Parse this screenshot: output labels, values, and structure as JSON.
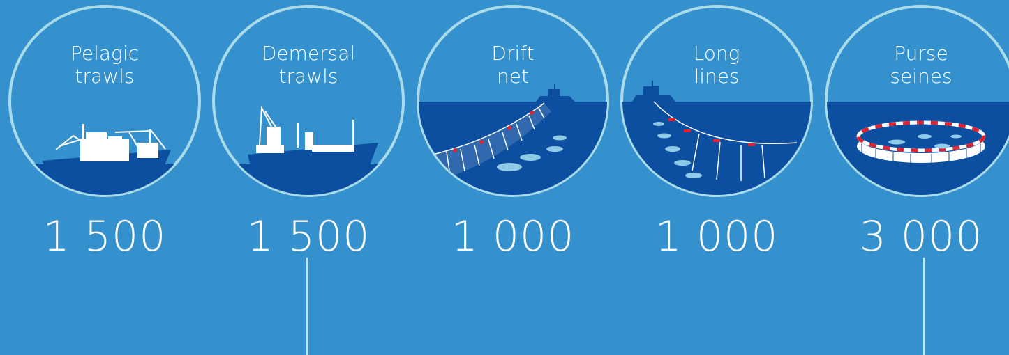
{
  "items": [
    {
      "line1": "Pelagic",
      "line2": "trawls",
      "value": "1 500"
    },
    {
      "line1": "Demersal",
      "line2": "trawls",
      "value": "1 500"
    },
    {
      "line1": "Drift",
      "line2": "net",
      "value": "1 000"
    },
    {
      "line1": "Long",
      "line2": "lines",
      "value": "1 000"
    },
    {
      "line1": "Purse",
      "line2": "seines",
      "value": "3 000"
    }
  ],
  "colors": {
    "background": "#3591cd",
    "sea": "#0c4fa0",
    "ring": "#a9dbe9",
    "text": "#ffffff",
    "float": "#e0232e"
  }
}
